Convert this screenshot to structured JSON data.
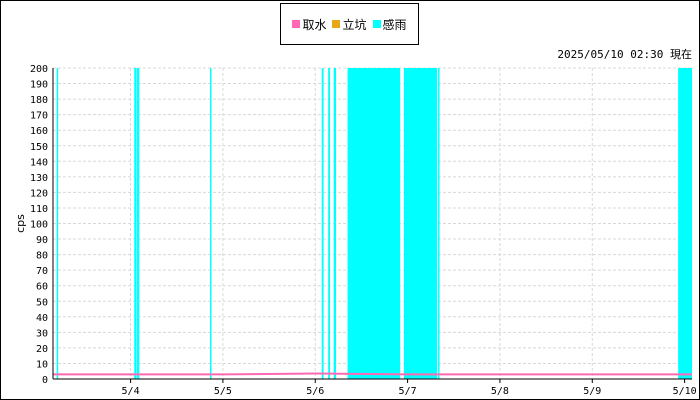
{
  "legend": [
    {
      "label": "取水",
      "color": "#ff69b4"
    },
    {
      "label": "立坑",
      "color": "#e6a817"
    },
    {
      "label": "感雨",
      "color": "#00ffff"
    }
  ],
  "timestamp": "2025/05/10 02:30 現在",
  "chart_data": {
    "type": "bar",
    "ylabel": "cps",
    "xlabel": "",
    "ylim": [
      0,
      200
    ],
    "yticks": [
      0,
      10,
      20,
      30,
      40,
      50,
      60,
      70,
      80,
      90,
      100,
      110,
      120,
      130,
      140,
      150,
      160,
      170,
      180,
      190,
      200
    ],
    "xlim": [
      3.16,
      10.08
    ],
    "xticks": [
      {
        "label": "5/4",
        "day": 4
      },
      {
        "label": "5/5",
        "day": 5
      },
      {
        "label": "5/6",
        "day": 6
      },
      {
        "label": "5/7",
        "day": 7
      },
      {
        "label": "5/8",
        "day": 8
      },
      {
        "label": "5/9",
        "day": 9
      },
      {
        "label": "5/10",
        "day": 10
      }
    ],
    "grid": true,
    "series": [
      {
        "name": "感雨",
        "color": "#00ffff",
        "kind": "bars",
        "value": 200,
        "intervals": [
          [
            3.2,
            3.215
          ],
          [
            4.04,
            4.065
          ],
          [
            4.07,
            4.095
          ],
          [
            4.86,
            4.875
          ],
          [
            6.07,
            6.09
          ],
          [
            6.14,
            6.16
          ],
          [
            6.2,
            6.225
          ],
          [
            6.35,
            6.92
          ],
          [
            6.96,
            7.32
          ],
          [
            7.33,
            7.345
          ],
          [
            9.93,
            10.08
          ]
        ]
      },
      {
        "name": "取水",
        "color": "#ff69b4",
        "kind": "line",
        "x": [
          3.16,
          5.0,
          6.0,
          7.0,
          8.0,
          9.0,
          10.08
        ],
        "y": [
          3,
          3,
          3.5,
          3,
          3,
          3,
          3
        ]
      },
      {
        "name": "立坑",
        "color": "#e6a817",
        "kind": "line",
        "x": [],
        "y": []
      }
    ]
  }
}
